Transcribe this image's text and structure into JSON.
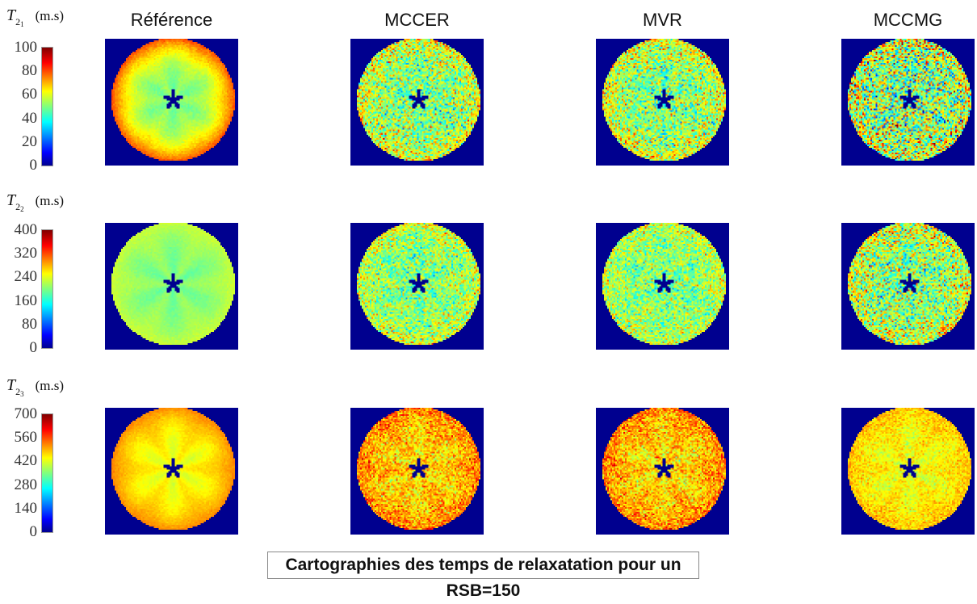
{
  "chart_data": {
    "type": "heatmap",
    "columns": [
      "Référence",
      "MCCER",
      "MVR",
      "MCCMG"
    ],
    "rows": [
      {
        "symbol": "T",
        "sub": "2",
        "subsub": "1",
        "unit": "(m.s)",
        "clim": [
          0,
          100
        ],
        "ticks": [
          "0",
          "20",
          "40",
          "60",
          "80",
          "100"
        ],
        "typical_values": {
          "Référence": 50,
          "MCCER": 50,
          "MVR": 50,
          "MCCMG": 50
        },
        "rim_values": {
          "Référence": 80,
          "MCCER": 62,
          "MVR": 62,
          "MCCMG": 60
        },
        "noise_level": {
          "Référence": 0.03,
          "MCCER": 0.22,
          "MVR": 0.22,
          "MCCMG": 0.32
        }
      },
      {
        "symbol": "T",
        "sub": "2",
        "subsub": "2",
        "unit": "(m.s)",
        "clim": [
          0,
          400
        ],
        "ticks": [
          "0",
          "80",
          "160",
          "240",
          "320",
          "400"
        ],
        "typical_values": {
          "Référence": 200,
          "MCCER": 200,
          "MVR": 200,
          "MCCMG": 200
        },
        "rim_values": {
          "Référence": 230,
          "MCCER": 235,
          "MVR": 230,
          "MCCMG": 240
        },
        "noise_level": {
          "Référence": 0.02,
          "MCCER": 0.18,
          "MVR": 0.17,
          "MCCMG": 0.25
        }
      },
      {
        "symbol": "T",
        "sub": "2",
        "subsub": "3",
        "unit": "(m.s)",
        "clim": [
          0,
          700
        ],
        "ticks": [
          "0",
          "140",
          "280",
          "420",
          "560",
          "700"
        ],
        "typical_values": {
          "Référence": 430,
          "MCCER": 460,
          "MVR": 460,
          "MCCMG": 430
        },
        "rim_values": {
          "Référence": 520,
          "MCCER": 530,
          "MVR": 530,
          "MCCMG": 480
        },
        "noise_level": {
          "Référence": 0.02,
          "MCCER": 0.14,
          "MVR": 0.14,
          "MCCMG": 0.08
        }
      }
    ],
    "colormap": "jet",
    "background_color": "#00008f",
    "caption": "Cartographies des temps de relaxatation pour un RSB=150"
  }
}
